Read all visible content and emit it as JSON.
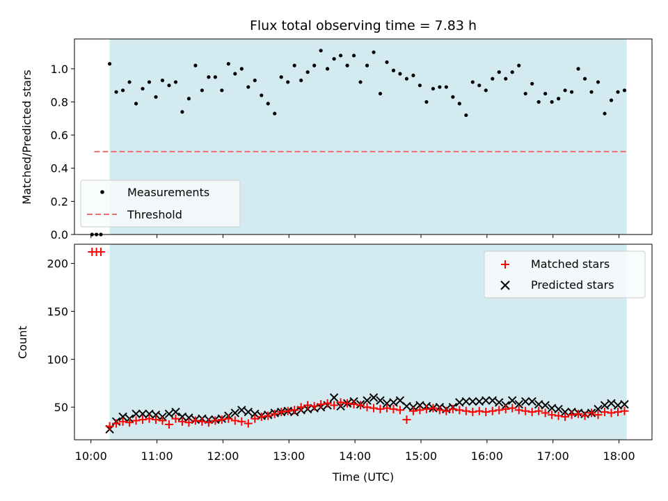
{
  "chart_data": [
    {
      "type": "scatter",
      "title": "Flux total observing time = 7.83 h",
      "ylabel": "Matched/Predicted stars",
      "xlim": [
        "09:45",
        "18:30"
      ],
      "ylim": [
        0,
        1.18
      ],
      "y_ticks": [
        "0.0",
        "0.2",
        "0.4",
        "0.6",
        "0.8",
        "1.0"
      ],
      "shaded_interval": [
        "10:17",
        "18:07"
      ],
      "shade_color": "#d3eaf0",
      "threshold": {
        "value": 0.5,
        "x_range": [
          "10:03",
          "18:07"
        ],
        "color": "#f07070"
      },
      "legend": {
        "placement": "lower-left",
        "entries": [
          "Measurements",
          "Threshold"
        ]
      },
      "series": [
        {
          "name": "Measurements",
          "color": "#000000",
          "x": [
            "10:01",
            "10:05",
            "10:09",
            "10:17",
            "10:23",
            "10:29",
            "10:35",
            "10:41",
            "10:47",
            "10:53",
            "10:59",
            "11:05",
            "11:11",
            "11:17",
            "11:23",
            "11:29",
            "11:35",
            "11:41",
            "11:47",
            "11:53",
            "11:59",
            "12:05",
            "12:11",
            "12:17",
            "12:23",
            "12:29",
            "12:35",
            "12:41",
            "12:47",
            "12:53",
            "12:59",
            "13:05",
            "13:11",
            "13:17",
            "13:23",
            "13:29",
            "13:35",
            "13:41",
            "13:47",
            "13:53",
            "13:59",
            "14:05",
            "14:11",
            "14:17",
            "14:23",
            "14:29",
            "14:35",
            "14:41",
            "14:47",
            "14:53",
            "14:59",
            "15:05",
            "15:11",
            "15:17",
            "15:23",
            "15:29",
            "15:35",
            "15:41",
            "15:47",
            "15:53",
            "15:59",
            "16:05",
            "16:11",
            "16:17",
            "16:23",
            "16:29",
            "16:35",
            "16:41",
            "16:47",
            "16:53",
            "16:59",
            "17:05",
            "17:11",
            "17:17",
            "17:23",
            "17:29",
            "17:35",
            "17:41",
            "17:47",
            "17:53",
            "17:59",
            "18:05"
          ],
          "y": [
            0.0,
            0.0,
            0.0,
            1.03,
            0.86,
            0.87,
            0.92,
            0.79,
            0.88,
            0.92,
            0.83,
            0.93,
            0.9,
            0.92,
            0.74,
            0.82,
            1.02,
            0.87,
            0.95,
            0.95,
            0.87,
            1.03,
            0.97,
            1.0,
            0.89,
            0.93,
            0.84,
            0.79,
            0.73,
            0.95,
            0.92,
            1.02,
            0.93,
            0.98,
            1.02,
            1.11,
            1.0,
            1.06,
            1.08,
            1.02,
            1.08,
            0.92,
            1.02,
            1.1,
            0.85,
            1.04,
            0.99,
            0.97,
            0.94,
            0.96,
            0.9,
            0.8,
            0.88,
            0.89,
            0.89,
            0.83,
            0.79,
            0.72,
            0.92,
            0.9,
            0.87,
            0.94,
            0.98,
            0.94,
            0.98,
            1.02,
            0.85,
            0.91,
            0.8,
            0.85,
            0.8,
            0.82,
            0.87,
            0.86,
            1.0,
            0.94,
            0.86,
            0.92,
            0.73,
            0.81,
            0.86,
            0.87
          ]
        },
        {
          "name": "Threshold",
          "color": "#f07070",
          "x": [
            "10:03",
            "18:07"
          ],
          "y": [
            0.5,
            0.5
          ]
        }
      ]
    },
    {
      "type": "scatter",
      "xlabel": "Time (UTC)",
      "ylabel": "Count",
      "xlim": [
        "09:45",
        "18:30"
      ],
      "ylim": [
        16,
        220
      ],
      "x_ticks": [
        "10:00",
        "11:00",
        "12:00",
        "13:00",
        "14:00",
        "15:00",
        "16:00",
        "17:00",
        "18:00"
      ],
      "y_ticks": [
        "50",
        "100",
        "150",
        "200"
      ],
      "shaded_interval": [
        "10:17",
        "18:07"
      ],
      "shade_color": "#d3eaf0",
      "legend": {
        "placement": "top-right",
        "entries": [
          "Matched stars",
          "Predicted stars"
        ]
      },
      "series": [
        {
          "name": "Matched stars",
          "marker": "+",
          "color": "#ff0000",
          "x": [
            "10:01",
            "10:05",
            "10:09",
            "10:17",
            "10:23",
            "10:29",
            "10:35",
            "10:41",
            "10:47",
            "10:53",
            "10:59",
            "11:05",
            "11:11",
            "11:17",
            "11:23",
            "11:29",
            "11:35",
            "11:41",
            "11:47",
            "11:53",
            "11:59",
            "12:05",
            "12:11",
            "12:17",
            "12:23",
            "12:29",
            "12:35",
            "12:41",
            "12:47",
            "12:53",
            "12:59",
            "13:05",
            "13:11",
            "13:17",
            "13:23",
            "13:29",
            "13:35",
            "13:41",
            "13:47",
            "13:53",
            "13:59",
            "14:05",
            "14:11",
            "14:17",
            "14:23",
            "14:29",
            "14:35",
            "14:41",
            "14:47",
            "14:53",
            "14:59",
            "15:05",
            "15:11",
            "15:17",
            "15:23",
            "15:29",
            "15:35",
            "15:41",
            "15:47",
            "15:53",
            "15:59",
            "16:05",
            "16:11",
            "16:17",
            "16:23",
            "16:29",
            "16:35",
            "16:41",
            "16:47",
            "16:53",
            "16:59",
            "17:05",
            "17:11",
            "17:17",
            "17:23",
            "17:29",
            "17:35",
            "17:41",
            "17:47",
            "17:53",
            "17:59",
            "18:05"
          ],
          "y": [
            212,
            212,
            212,
            30,
            33,
            35,
            34,
            36,
            37,
            38,
            37,
            36,
            32,
            38,
            35,
            34,
            36,
            35,
            34,
            36,
            37,
            38,
            36,
            35,
            33,
            38,
            40,
            41,
            43,
            45,
            46,
            47,
            50,
            52,
            51,
            53,
            54,
            52,
            55,
            54,
            53,
            52,
            50,
            49,
            48,
            49,
            48,
            47,
            37,
            46,
            47,
            48,
            49,
            47,
            46,
            48,
            47,
            46,
            45,
            46,
            45,
            46,
            47,
            48,
            49,
            47,
            46,
            45,
            46,
            44,
            42,
            41,
            40,
            42,
            43,
            41,
            44,
            42,
            45,
            44,
            45,
            46
          ]
        },
        {
          "name": "Predicted stars",
          "marker": "x",
          "color": "#000000",
          "x": [
            "10:17",
            "10:23",
            "10:29",
            "10:35",
            "10:41",
            "10:47",
            "10:53",
            "10:59",
            "11:05",
            "11:11",
            "11:17",
            "11:23",
            "11:29",
            "11:35",
            "11:41",
            "11:47",
            "11:53",
            "11:59",
            "12:05",
            "12:11",
            "12:17",
            "12:23",
            "12:29",
            "12:35",
            "12:41",
            "12:47",
            "12:53",
            "12:59",
            "13:05",
            "13:11",
            "13:17",
            "13:23",
            "13:29",
            "13:35",
            "13:41",
            "13:47",
            "13:53",
            "13:59",
            "14:05",
            "14:11",
            "14:17",
            "14:23",
            "14:29",
            "14:35",
            "14:41",
            "14:47",
            "14:53",
            "14:59",
            "15:05",
            "15:11",
            "15:17",
            "15:23",
            "15:29",
            "15:35",
            "15:41",
            "15:47",
            "15:53",
            "15:59",
            "16:05",
            "16:11",
            "16:17",
            "16:23",
            "16:29",
            "16:35",
            "16:41",
            "16:47",
            "16:53",
            "16:59",
            "17:05",
            "17:11",
            "17:17",
            "17:23",
            "17:29",
            "17:35",
            "17:41",
            "17:47",
            "17:53",
            "17:59",
            "18:05"
          ],
          "y": [
            27,
            35,
            40,
            38,
            43,
            43,
            43,
            42,
            40,
            43,
            45,
            40,
            39,
            37,
            38,
            37,
            37,
            38,
            41,
            44,
            47,
            45,
            43,
            41,
            42,
            44,
            45,
            46,
            45,
            47,
            48,
            49,
            50,
            52,
            60,
            51,
            54,
            56,
            53,
            57,
            60,
            57,
            54,
            55,
            57,
            51,
            50,
            52,
            51,
            49,
            50,
            48,
            50,
            55,
            56,
            56,
            56,
            57,
            57,
            55,
            52,
            57,
            53,
            56,
            56,
            53,
            52,
            49,
            48,
            45,
            45,
            44,
            43,
            44,
            48,
            52,
            54,
            52,
            53
          ]
        }
      ]
    }
  ]
}
